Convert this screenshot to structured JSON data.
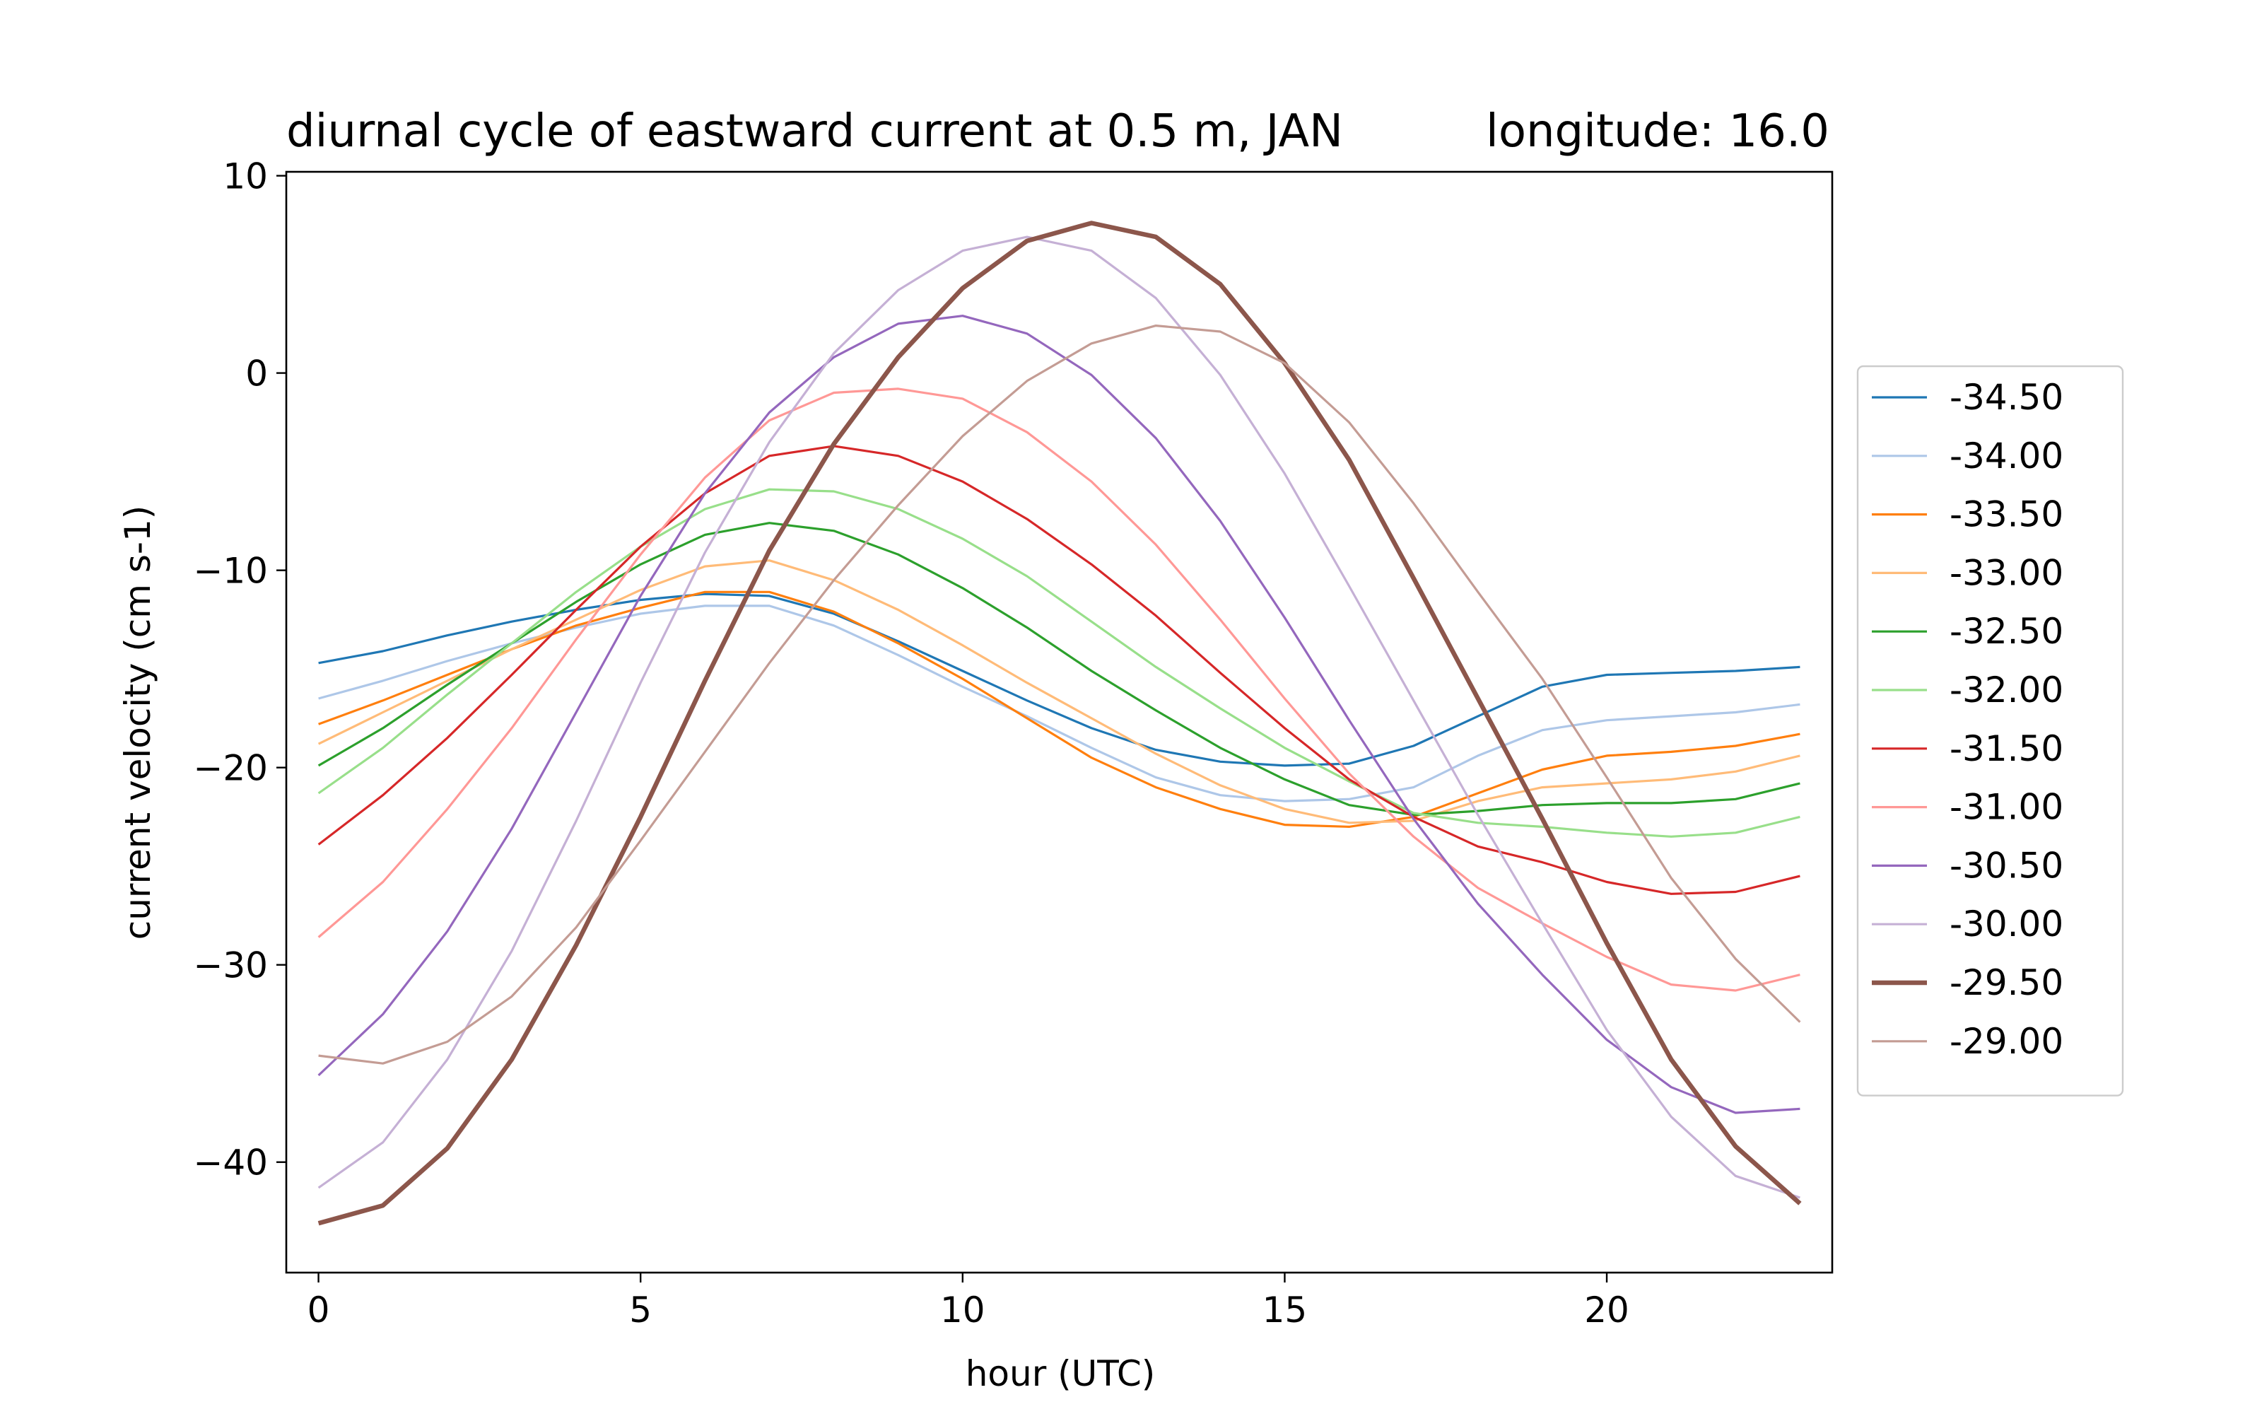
{
  "chart_data": {
    "type": "line",
    "title_left": "diurnal cycle of eastward current at 0.5 m, JAN",
    "title_right": "longitude: 16.0",
    "xlabel": "hour (UTC)",
    "ylabel": "current velocity (cm s-1)",
    "xlim": [
      -0.5,
      23.5
    ],
    "ylim": [
      -45.6,
      10.2
    ],
    "xticks": [
      0,
      5,
      10,
      15,
      20
    ],
    "yticks": [
      10,
      0,
      -10,
      -20,
      -30,
      -40
    ],
    "xtick_labels": [
      "0",
      "5",
      "10",
      "15",
      "20"
    ],
    "ytick_labels": [
      "10",
      "0",
      "−10",
      "−20",
      "−30",
      "−40"
    ],
    "grid": false,
    "legend_placement": "outside-right",
    "x": [
      0,
      1,
      2,
      3,
      4,
      5,
      6,
      7,
      8,
      9,
      10,
      11,
      12,
      13,
      14,
      15,
      16,
      17,
      18,
      19,
      20,
      21,
      22,
      23
    ],
    "series": [
      {
        "name": "-34.50",
        "color": "#1f77b4",
        "bold": false,
        "values": [
          -14.7,
          -14.1,
          -13.3,
          -12.6,
          -12.0,
          -11.5,
          -11.2,
          -11.3,
          -12.2,
          -13.6,
          -15.1,
          -16.6,
          -18.0,
          -19.1,
          -19.7,
          -19.9,
          -19.8,
          -18.9,
          -17.4,
          -15.9,
          -15.3,
          -15.2,
          -15.1,
          -14.9
        ]
      },
      {
        "name": "-34.00",
        "color": "#aec7e8",
        "bold": false,
        "values": [
          -16.5,
          -15.6,
          -14.6,
          -13.7,
          -12.9,
          -12.2,
          -11.8,
          -11.8,
          -12.8,
          -14.3,
          -15.9,
          -17.4,
          -19.0,
          -20.5,
          -21.4,
          -21.7,
          -21.6,
          -21.0,
          -19.4,
          -18.1,
          -17.6,
          -17.4,
          -17.2,
          -16.8
        ]
      },
      {
        "name": "-33.50",
        "color": "#ff7f0e",
        "bold": false,
        "values": [
          -17.8,
          -16.6,
          -15.3,
          -14.0,
          -12.8,
          -11.9,
          -11.1,
          -11.1,
          -12.1,
          -13.7,
          -15.5,
          -17.5,
          -19.5,
          -21.0,
          -22.1,
          -22.9,
          -23.0,
          -22.5,
          -21.3,
          -20.1,
          -19.4,
          -19.2,
          -18.9,
          -18.3
        ]
      },
      {
        "name": "-33.00",
        "color": "#ffbb78",
        "bold": false,
        "values": [
          -18.8,
          -17.2,
          -15.6,
          -14.0,
          -12.5,
          -11.0,
          -9.8,
          -9.5,
          -10.5,
          -12.0,
          -13.8,
          -15.7,
          -17.5,
          -19.3,
          -20.9,
          -22.1,
          -22.8,
          -22.7,
          -21.7,
          -21.0,
          -20.8,
          -20.6,
          -20.2,
          -19.4
        ]
      },
      {
        "name": "-32.50",
        "color": "#2ca02c",
        "bold": false,
        "values": [
          -19.9,
          -18.0,
          -15.8,
          -13.7,
          -11.6,
          -9.7,
          -8.2,
          -7.6,
          -8.0,
          -9.2,
          -10.9,
          -12.9,
          -15.1,
          -17.1,
          -19.0,
          -20.6,
          -21.9,
          -22.4,
          -22.2,
          -21.9,
          -21.8,
          -21.8,
          -21.6,
          -20.8
        ]
      },
      {
        "name": "-32.00",
        "color": "#98df8a",
        "bold": false,
        "values": [
          -21.3,
          -19.0,
          -16.3,
          -13.7,
          -11.1,
          -8.8,
          -6.9,
          -5.9,
          -6.0,
          -6.9,
          -8.4,
          -10.3,
          -12.6,
          -14.9,
          -17.0,
          -19.0,
          -20.7,
          -22.3,
          -22.8,
          -23.0,
          -23.3,
          -23.5,
          -23.3,
          -22.5
        ]
      },
      {
        "name": "-31.50",
        "color": "#d62728",
        "bold": false,
        "values": [
          -23.9,
          -21.4,
          -18.5,
          -15.3,
          -12.0,
          -8.8,
          -6.1,
          -4.2,
          -3.7,
          -4.2,
          -5.5,
          -7.4,
          -9.7,
          -12.3,
          -15.2,
          -18.0,
          -20.6,
          -22.5,
          -24.0,
          -24.8,
          -25.8,
          -26.4,
          -26.3,
          -25.5
        ]
      },
      {
        "name": "-31.00",
        "color": "#ff9896",
        "bold": false,
        "values": [
          -28.6,
          -25.8,
          -22.1,
          -18.0,
          -13.5,
          -9.2,
          -5.3,
          -2.4,
          -1.0,
          -0.8,
          -1.3,
          -3.0,
          -5.5,
          -8.7,
          -12.5,
          -16.5,
          -20.3,
          -23.5,
          -26.1,
          -27.9,
          -29.6,
          -31.0,
          -31.3,
          -30.5
        ]
      },
      {
        "name": "-30.50",
        "color": "#9467bd",
        "bold": false,
        "values": [
          -35.6,
          -32.5,
          -28.3,
          -23.1,
          -17.2,
          -11.3,
          -6.1,
          -2.0,
          0.8,
          2.5,
          2.9,
          2.0,
          -0.1,
          -3.3,
          -7.5,
          -12.4,
          -17.6,
          -22.6,
          -26.9,
          -30.5,
          -33.8,
          -36.2,
          -37.5,
          -37.3
        ]
      },
      {
        "name": "-30.00",
        "color": "#c5b0d5",
        "bold": false,
        "values": [
          -41.3,
          -39.0,
          -34.8,
          -29.3,
          -22.7,
          -15.7,
          -9.1,
          -3.5,
          1.0,
          4.2,
          6.2,
          6.9,
          6.2,
          3.8,
          -0.1,
          -5.1,
          -10.8,
          -16.6,
          -22.4,
          -27.9,
          -33.3,
          -37.7,
          -40.7,
          -41.8
        ]
      },
      {
        "name": "-29.50",
        "color": "#8c564b",
        "bold": true,
        "values": [
          -43.1,
          -42.2,
          -39.3,
          -34.8,
          -29.0,
          -22.5,
          -15.6,
          -9.0,
          -3.6,
          0.8,
          4.3,
          6.7,
          7.6,
          6.9,
          4.5,
          0.5,
          -4.4,
          -10.4,
          -16.5,
          -22.6,
          -28.9,
          -34.8,
          -39.2,
          -42.1
        ]
      },
      {
        "name": "-29.00",
        "color": "#c49c94",
        "bold": false,
        "values": [
          -34.6,
          -35.0,
          -33.9,
          -31.6,
          -28.1,
          -23.7,
          -19.2,
          -14.7,
          -10.5,
          -6.7,
          -3.2,
          -0.4,
          1.5,
          2.4,
          2.1,
          0.5,
          -2.5,
          -6.6,
          -11.1,
          -15.5,
          -20.5,
          -25.6,
          -29.7,
          -32.9
        ]
      }
    ]
  }
}
